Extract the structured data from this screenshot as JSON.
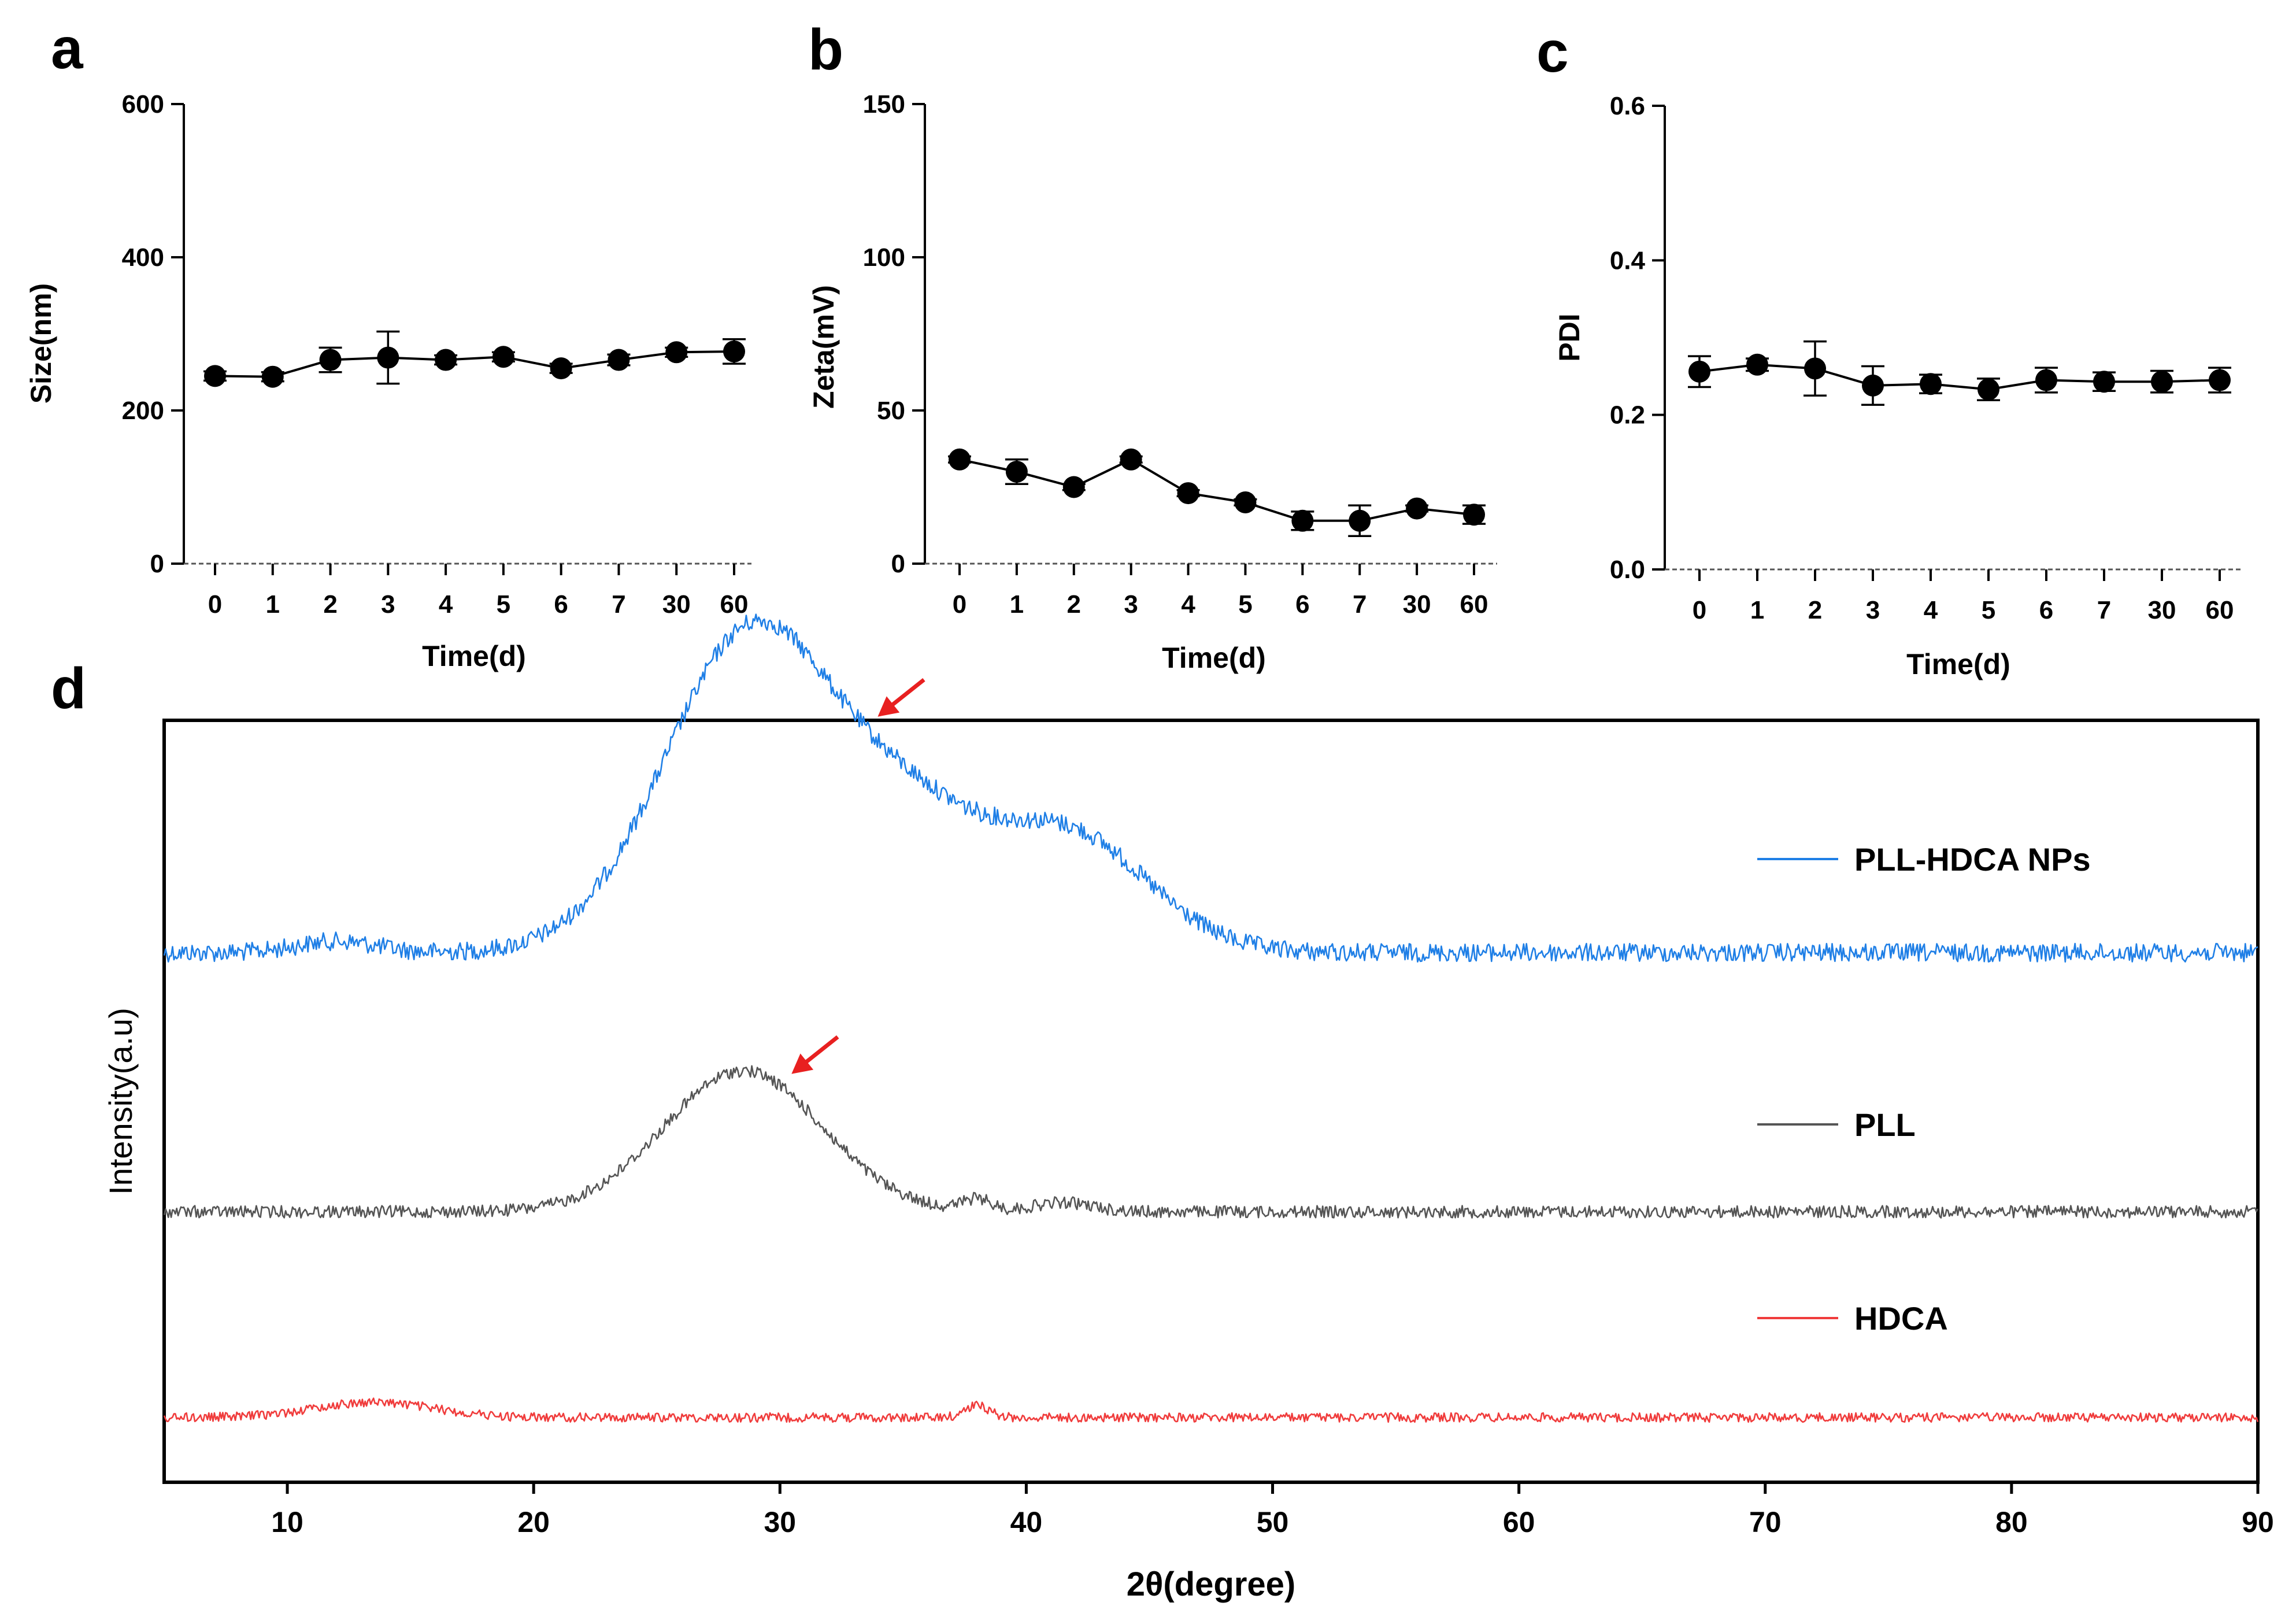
{
  "chart_data": [
    {
      "panel": "a",
      "type": "line",
      "categories": [
        "0",
        "1",
        "2",
        "3",
        "4",
        "5",
        "6",
        "7",
        "30",
        "60"
      ],
      "values": [
        245,
        244,
        266,
        269,
        266,
        270,
        255,
        266,
        276,
        277
      ],
      "errors": [
        6,
        6,
        16,
        34,
        6,
        6,
        6,
        7,
        6,
        16
      ],
      "xlabel": "Time(d)",
      "ylabel": "Size(nm)",
      "ylim": [
        0,
        600
      ],
      "yticks": [
        "0",
        "200",
        "400",
        "600"
      ],
      "colors": {
        "line": "#000000",
        "marker": "#000000"
      }
    },
    {
      "panel": "b",
      "type": "line",
      "categories": [
        "0",
        "1",
        "2",
        "3",
        "4",
        "5",
        "6",
        "7",
        "30",
        "60"
      ],
      "values": [
        34,
        30,
        25,
        34,
        23,
        20,
        14,
        14,
        18,
        16
      ],
      "errors": [
        1,
        4,
        1,
        1,
        1,
        1,
        3,
        5,
        1,
        3
      ],
      "xlabel": "Time(d)",
      "ylabel": "Zeta(mV)",
      "ylim": [
        0,
        150
      ],
      "yticks": [
        "0",
        "50",
        "100",
        "150"
      ],
      "colors": {
        "line": "#000000",
        "marker": "#000000"
      }
    },
    {
      "panel": "c",
      "type": "line",
      "categories": [
        "0",
        "1",
        "2",
        "3",
        "4",
        "5",
        "6",
        "7",
        "30",
        "60"
      ],
      "values": [
        0.256,
        0.265,
        0.26,
        0.238,
        0.24,
        0.233,
        0.245,
        0.243,
        0.243,
        0.245
      ],
      "errors": [
        0.02,
        0.008,
        0.035,
        0.025,
        0.012,
        0.014,
        0.016,
        0.012,
        0.014,
        0.016
      ],
      "xlabel": "Time(d)",
      "ylabel": "PDI",
      "ylim": [
        0,
        0.6
      ],
      "yticks": [
        "0.0",
        "0.2",
        "0.4",
        "0.6"
      ],
      "colors": {
        "line": "#000000",
        "marker": "#000000"
      }
    },
    {
      "panel": "d",
      "type": "line",
      "xlabel": "2θ(degree)",
      "ylabel": "Intensity(a.u)",
      "xlim": [
        5,
        90
      ],
      "xticks": [
        "10",
        "20",
        "30",
        "40",
        "50",
        "60",
        "70",
        "80",
        "90"
      ],
      "series": [
        {
          "name": "PLL-HDCA NPs",
          "color": "#1f7fe6",
          "baseline": 0.305,
          "noise": 0.012,
          "peaks": [
            {
              "center": 29,
              "height": 0.43,
              "width": 3.6
            },
            {
              "center": 41.5,
              "height": 0.16,
              "width": 3.3
            },
            {
              "center": 35.5,
              "height": 0.12,
              "width": 2.6
            },
            {
              "center": 12,
              "height": 0.015,
              "width": 1.6
            }
          ],
          "arrow_at": 33.5
        },
        {
          "name": "PLL",
          "color": "#555555",
          "baseline": 0.645,
          "noise": 0.008,
          "peaks": [
            {
              "center": 28.5,
              "height": 0.185,
              "width": 3.2
            },
            {
              "center": 38,
              "height": 0.015,
              "width": 0.6
            },
            {
              "center": 41.5,
              "height": 0.012,
              "width": 1.2
            }
          ],
          "arrow_at": 30
        },
        {
          "name": "HDCA",
          "color": "#f03c3c",
          "baseline": 0.915,
          "noise": 0.006,
          "peaks": [
            {
              "center": 13.5,
              "height": 0.02,
              "width": 2.4
            },
            {
              "center": 38,
              "height": 0.016,
              "width": 0.5
            }
          ]
        }
      ],
      "arrow_color": "#e82020"
    }
  ]
}
